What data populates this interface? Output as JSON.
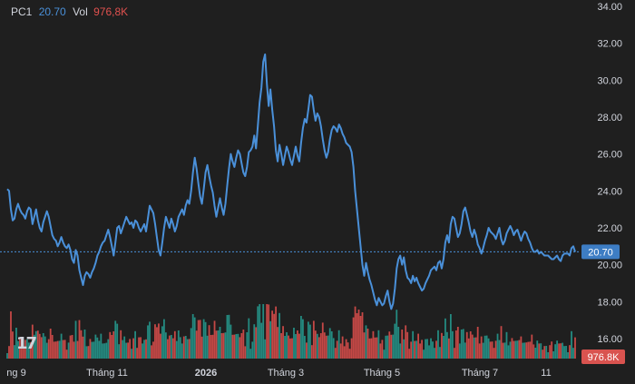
{
  "legend": {
    "symbol": "PC1",
    "price": "20.70",
    "vol_label": "Vol",
    "volume": "976,8K"
  },
  "logo_text": "17",
  "colors": {
    "background": "#1f1f1f",
    "line": "#4a90d9",
    "vol_up": "#26a69a",
    "vol_down": "#ef5350",
    "axis_text": "#d1d4dc",
    "price_tag": "#3d7dc4",
    "vol_tag": "#d9534f"
  },
  "chart_data": {
    "type": "line",
    "title": "",
    "series": [
      {
        "name": "PC1"
      }
    ],
    "price_axis": {
      "min": 16,
      "max": 34,
      "ticks": [
        "16.00",
        "18.00",
        "20.00",
        "22.00",
        "24.00",
        "26.00",
        "28.00",
        "30.00",
        "32.00",
        "34.00"
      ]
    },
    "last_price_label": "20.70",
    "last_volume_label": "976.8K",
    "time_labels": [
      {
        "text": "ng 9",
        "bold": false
      },
      {
        "text": "Tháng 11",
        "bold": false
      },
      {
        "text": "2026",
        "bold": true
      },
      {
        "text": "Tháng 3",
        "bold": false
      },
      {
        "text": "Tháng 5",
        "bold": false
      },
      {
        "text": "Tháng 7",
        "bold": false
      },
      {
        "text": "11",
        "bold": false
      }
    ],
    "prices": [
      24.1,
      24.0,
      23.0,
      22.4,
      22.5,
      23.0,
      23.3,
      23.0,
      22.8,
      22.7,
      22.5,
      22.9,
      23.1,
      23.0,
      22.2,
      22.6,
      23.0,
      22.4,
      22.0,
      21.8,
      22.3,
      22.6,
      22.9,
      22.6,
      22.1,
      21.6,
      21.4,
      21.3,
      21.0,
      21.2,
      21.5,
      21.2,
      21.0,
      20.9,
      21.1,
      20.8,
      20.3,
      20.1,
      20.8,
      20.5,
      19.7,
      19.3,
      18.9,
      19.4,
      19.6,
      19.5,
      19.3,
      19.6,
      19.8,
      20.1,
      20.5,
      20.7,
      21.0,
      21.2,
      21.3,
      21.6,
      21.9,
      21.5,
      21.0,
      20.5,
      21.2,
      22.0,
      22.1,
      21.7,
      22.0,
      22.3,
      22.6,
      22.4,
      22.2,
      22.3,
      22.0,
      22.4,
      22.3,
      22.0,
      21.8,
      22.0,
      22.2,
      21.8,
      22.5,
      23.2,
      23.0,
      22.8,
      22.2,
      21.5,
      20.8,
      20.5,
      21.2,
      22.0,
      22.6,
      22.3,
      22.0,
      22.5,
      22.2,
      21.8,
      22.1,
      22.6,
      22.8,
      23.0,
      22.7,
      23.2,
      23.5,
      23.3,
      24.0,
      25.0,
      25.8,
      25.2,
      24.4,
      23.7,
      23.3,
      24.1,
      25.0,
      25.4,
      24.8,
      24.3,
      23.9,
      23.2,
      22.6,
      23.1,
      23.6,
      23.1,
      22.7,
      23.3,
      24.3,
      25.2,
      26.0,
      25.6,
      25.3,
      25.8,
      26.2,
      26.0,
      25.5,
      25.0,
      24.8,
      25.3,
      26.1,
      26.2,
      26.4,
      27.0,
      26.3,
      27.5,
      28.8,
      29.6,
      31.0,
      31.4,
      29.8,
      28.6,
      29.5,
      28.4,
      27.5,
      26.2,
      25.6,
      26.5,
      26.0,
      25.4,
      25.9,
      26.4,
      26.1,
      25.7,
      25.4,
      25.9,
      26.4,
      25.9,
      25.6,
      26.6,
      27.4,
      27.9,
      27.7,
      28.4,
      29.2,
      29.1,
      28.4,
      27.8,
      28.2,
      28.0,
      27.5,
      26.8,
      26.2,
      25.8,
      26.1,
      26.8,
      27.3,
      27.5,
      27.4,
      27.2,
      27.6,
      27.4,
      27.1,
      26.9,
      26.6,
      26.5,
      26.4,
      26.1,
      25.3,
      24.0,
      23.0,
      22.0,
      21.0,
      20.0,
      19.4,
      20.1,
      19.6,
      19.2,
      18.9,
      18.5,
      18.1,
      17.8,
      18.2,
      18.0,
      17.8,
      17.9,
      18.3,
      18.6,
      18.0,
      17.6,
      17.9,
      18.7,
      19.8,
      20.3,
      20.5,
      20.0,
      20.4,
      19.7,
      19.3,
      19.2,
      19.0,
      19.4,
      19.1,
      19.3,
      19.0,
      18.8,
      18.6,
      18.7,
      19.0,
      19.2,
      19.4,
      19.7,
      19.8,
      19.9,
      19.7,
      20.1,
      20.2,
      19.8,
      20.3,
      21.2,
      21.6,
      21.2,
      22.2,
      22.6,
      22.5,
      22.0,
      21.5,
      21.7,
      22.2,
      22.9,
      23.1,
      22.7,
      22.3,
      21.8,
      21.5,
      21.9,
      21.6,
      21.1,
      20.9,
      20.6,
      20.9,
      21.3,
      21.6,
      22.0,
      21.8,
      21.7,
      21.6,
      21.4,
      21.7,
      22.0,
      21.4,
      21.1,
      21.3,
      21.7,
      21.9,
      22.1,
      21.9,
      21.6,
      21.8,
      21.9,
      21.6,
      21.3,
      21.6,
      21.8,
      21.7,
      21.4,
      21.2,
      20.9,
      20.7,
      20.7,
      20.8,
      20.6,
      20.7,
      20.6,
      20.5,
      20.5,
      20.5,
      20.4,
      20.3,
      20.3,
      20.4,
      20.5,
      20.3,
      20.2,
      20.5,
      20.6,
      20.6,
      20.6,
      20.5,
      20.9,
      21.0,
      20.7
    ]
  }
}
